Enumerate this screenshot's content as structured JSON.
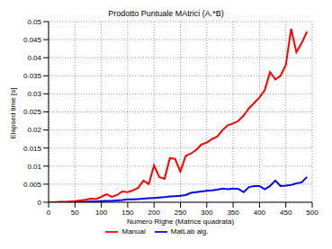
{
  "chart_data": {
    "type": "line",
    "title": "Prodotto Puntuale MAtrici (A.*B)",
    "xlabel": "Numero Righe (Matrice quadrata)",
    "ylabel": "Elapsed time [s]",
    "x": [
      0,
      10,
      20,
      30,
      40,
      50,
      60,
      70,
      80,
      90,
      100,
      110,
      120,
      130,
      140,
      150,
      160,
      170,
      180,
      190,
      200,
      210,
      220,
      230,
      240,
      250,
      260,
      270,
      280,
      290,
      300,
      310,
      320,
      330,
      340,
      350,
      360,
      370,
      380,
      390,
      400,
      410,
      420,
      430,
      440,
      450,
      460,
      470,
      480,
      490
    ],
    "series": [
      {
        "name": "MatLab alg.",
        "color": "#0000ff",
        "values": [
          0,
          0,
          0,
          0,
          0,
          0.0001,
          0.0001,
          0.0001,
          0.0002,
          0.0002,
          0.0003,
          0.0004,
          0.0004,
          0.0005,
          0.0006,
          0.0008,
          0.0008,
          0.0009,
          0.001,
          0.0011,
          0.0012,
          0.0013,
          0.0014,
          0.0016,
          0.0017,
          0.0018,
          0.002,
          0.0026,
          0.0028,
          0.003,
          0.0032,
          0.0033,
          0.0035,
          0.0038,
          0.0036,
          0.0038,
          0.0037,
          0.0028,
          0.0042,
          0.0045,
          0.0045,
          0.0036,
          0.0045,
          0.006,
          0.0045,
          0.0046,
          0.0048,
          0.0052,
          0.0055,
          0.007
        ]
      },
      {
        "name": "Manual",
        "color": "#ff0000",
        "values": [
          0,
          0,
          0.0001,
          0.0001,
          0.0002,
          0.0003,
          0.0005,
          0.0007,
          0.001,
          0.0009,
          0.0015,
          0.0022,
          0.0015,
          0.002,
          0.003,
          0.0028,
          0.0033,
          0.004,
          0.006,
          0.005,
          0.0102,
          0.007,
          0.0065,
          0.0122,
          0.012,
          0.0085,
          0.0128,
          0.0135,
          0.0145,
          0.016,
          0.0165,
          0.0175,
          0.0182,
          0.02,
          0.0213,
          0.0218,
          0.0225,
          0.024,
          0.026,
          0.0275,
          0.029,
          0.031,
          0.036,
          0.034,
          0.035,
          0.038,
          0.048,
          0.0415,
          0.044,
          0.0472
        ]
      }
    ],
    "xlim": [
      0,
      500
    ],
    "xticks": [
      0,
      50,
      100,
      150,
      200,
      250,
      300,
      350,
      400,
      450,
      500
    ],
    "ylim": [
      0,
      0.05
    ],
    "yticks": [
      0,
      0.005,
      0.01,
      0.015,
      0.02,
      0.025,
      0.03,
      0.035,
      0.04,
      0.045,
      0.05
    ],
    "grid": true,
    "legend": "bottom"
  }
}
